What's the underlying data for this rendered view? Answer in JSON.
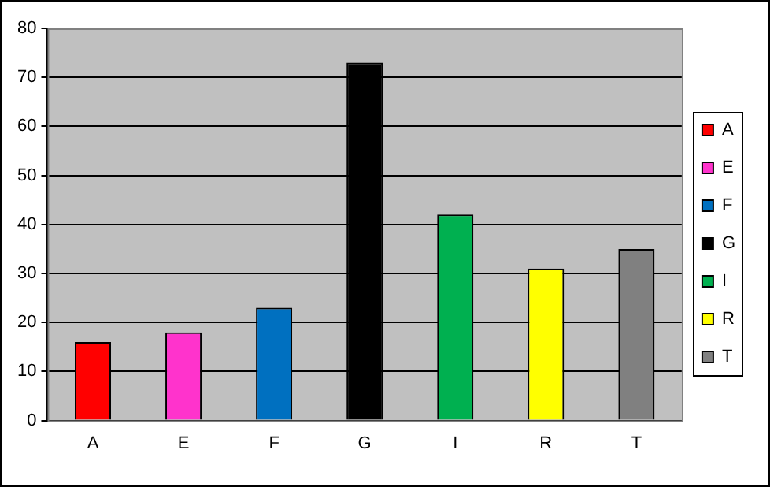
{
  "chart_data": {
    "type": "bar",
    "categories": [
      "A",
      "E",
      "F",
      "G",
      "I",
      "R",
      "T"
    ],
    "series": [
      {
        "name": "A",
        "color": "#ff0000",
        "values": [
          16,
          null,
          null,
          null,
          null,
          null,
          null
        ]
      },
      {
        "name": "E",
        "color": "#ff33cc",
        "values": [
          null,
          18,
          null,
          null,
          null,
          null,
          null
        ]
      },
      {
        "name": "F",
        "color": "#0070c0",
        "values": [
          null,
          null,
          23,
          null,
          null,
          null,
          null
        ]
      },
      {
        "name": "G",
        "color": "#000000",
        "values": [
          null,
          null,
          null,
          73,
          null,
          null,
          null
        ]
      },
      {
        "name": "I",
        "color": "#00b050",
        "values": [
          null,
          null,
          null,
          null,
          42,
          null,
          null
        ]
      },
      {
        "name": "R",
        "color": "#ffff00",
        "values": [
          null,
          null,
          null,
          null,
          null,
          31,
          null
        ]
      },
      {
        "name": "T",
        "color": "#808080",
        "values": [
          null,
          null,
          null,
          null,
          null,
          null,
          35
        ]
      }
    ],
    "ylim": [
      0,
      80
    ],
    "yticks": [
      0,
      10,
      20,
      30,
      40,
      50,
      60,
      70,
      80
    ],
    "grid": "y",
    "legend": "right"
  }
}
